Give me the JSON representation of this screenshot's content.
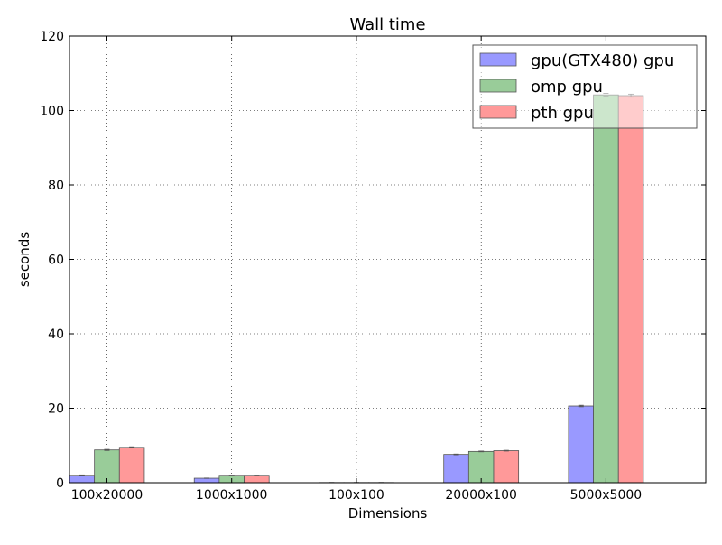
{
  "chart_data": {
    "type": "bar",
    "title": "Wall time",
    "xlabel": "Dimensions",
    "ylabel": "seconds",
    "categories": [
      "100x20000",
      "1000x1000",
      "100x100",
      "20000x100",
      "5000x5000"
    ],
    "ylim": [
      0,
      120
    ],
    "yticks": [
      0,
      20,
      40,
      60,
      80,
      100,
      120
    ],
    "grid": true,
    "grid_style": "dotted",
    "legend_position": "top-right",
    "series": [
      {
        "name": "gpu(GTX480) gpu",
        "color": "#9999ff",
        "values": [
          2.0,
          1.2,
          0.05,
          7.6,
          20.6
        ],
        "errors": [
          0.1,
          0.05,
          0.01,
          0.1,
          0.2
        ]
      },
      {
        "name": "omp gpu",
        "color": "#99cc99",
        "values": [
          8.8,
          2.0,
          0.05,
          8.4,
          104.2
        ],
        "errors": [
          0.15,
          0.05,
          0.01,
          0.1,
          0.4
        ]
      },
      {
        "name": "pth gpu",
        "color": "#ff9999",
        "values": [
          9.5,
          2.0,
          0.05,
          8.6,
          104.0
        ],
        "errors": [
          0.15,
          0.05,
          0.01,
          0.1,
          0.4
        ]
      }
    ]
  }
}
